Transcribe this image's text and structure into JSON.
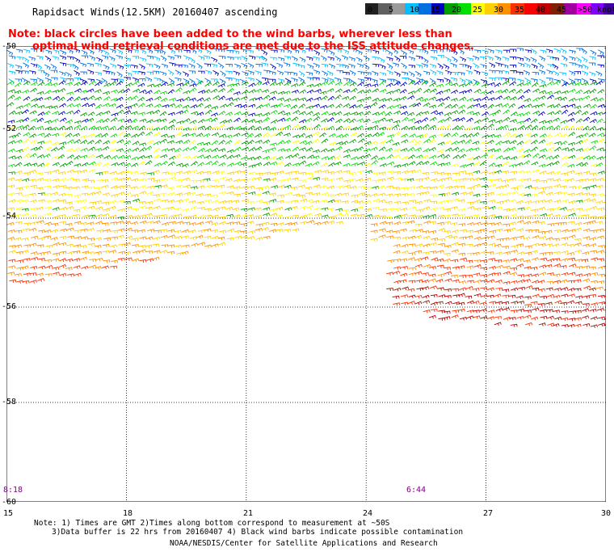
{
  "title": "Rapidsact Winds(12.5KM) 20160407 ascending",
  "note_line1": "Note: black circles have been added to the wind barbs, wherever less than",
  "note_line2": "optimal wind retrieval conditions are met due to the ISS attitude changes.",
  "legend": {
    "colors": [
      "#202020",
      "#606060",
      "#9a9a9a",
      "#00bfff",
      "#0070e0",
      "#0000c0",
      "#00a000",
      "#00e000",
      "#ffff00",
      "#ffd000",
      "#ff9000",
      "#ff3000",
      "#ff0000",
      "#c00000",
      "#802000",
      "#a000a0",
      "#ff00ff",
      "#8000ff",
      "#4000a0"
    ],
    "labels": [
      "0",
      "5",
      "10",
      "15",
      "20",
      "25",
      "30",
      "35",
      "40",
      "45",
      ">50 knots"
    ]
  },
  "axes": {
    "x_ticks": [
      "15",
      "18",
      "21",
      "24",
      "27",
      "30"
    ],
    "y_ticks": [
      "-50",
      "-52",
      "-54",
      "-56",
      "-58",
      "-60"
    ]
  },
  "times": {
    "left": "8:18",
    "right": "6:44"
  },
  "footnotes": {
    "line1": "Note: 1) Times are GMT 2)Times along bottom correspond to measurement at ~50S",
    "line2": "3)Data buffer is 22 hrs from 20160407 4) Black wind barbs indicate possible contamination",
    "line3": "NOAA/NESDIS/Center for Satellite Applications and Research"
  }
}
